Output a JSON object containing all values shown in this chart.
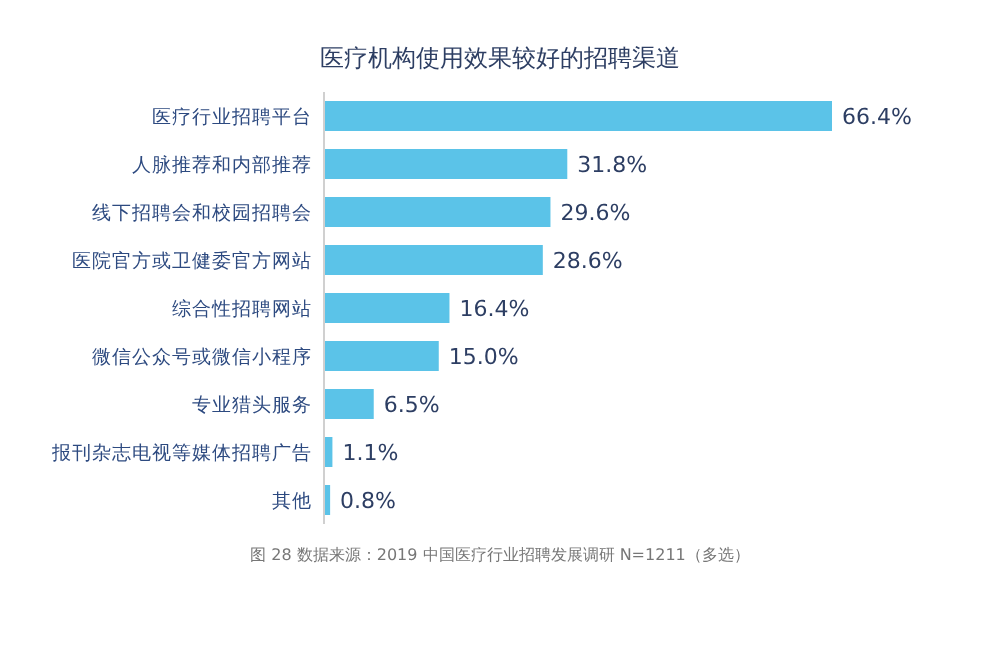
{
  "chart_data": {
    "type": "bar",
    "orientation": "horizontal",
    "title": "医疗机构使用效果较好的招聘渠道",
    "categories": [
      "医疗行业招聘平台",
      "人脉推荐和内部推荐",
      "线下招聘会和校园招聘会",
      "医院官方或卫健委官方网站",
      "综合性招聘网站",
      "微信公众号或微信小程序",
      "专业猎头服务",
      "报刊杂志电视等媒体招聘广告",
      "其他"
    ],
    "values": [
      66.4,
      31.8,
      29.6,
      28.6,
      16.4,
      15.0,
      6.5,
      1.1,
      0.8
    ],
    "value_labels": [
      "66.4%",
      "31.8%",
      "29.6%",
      "28.6%",
      "16.4%",
      "15.0%",
      "6.5%",
      "1.1%",
      "0.8%"
    ],
    "color": "#5bc3e8",
    "annotations": [
      "图 28      数据来源：2019 中国医疗行业招聘发展调研 N=1211（多选）"
    ]
  }
}
